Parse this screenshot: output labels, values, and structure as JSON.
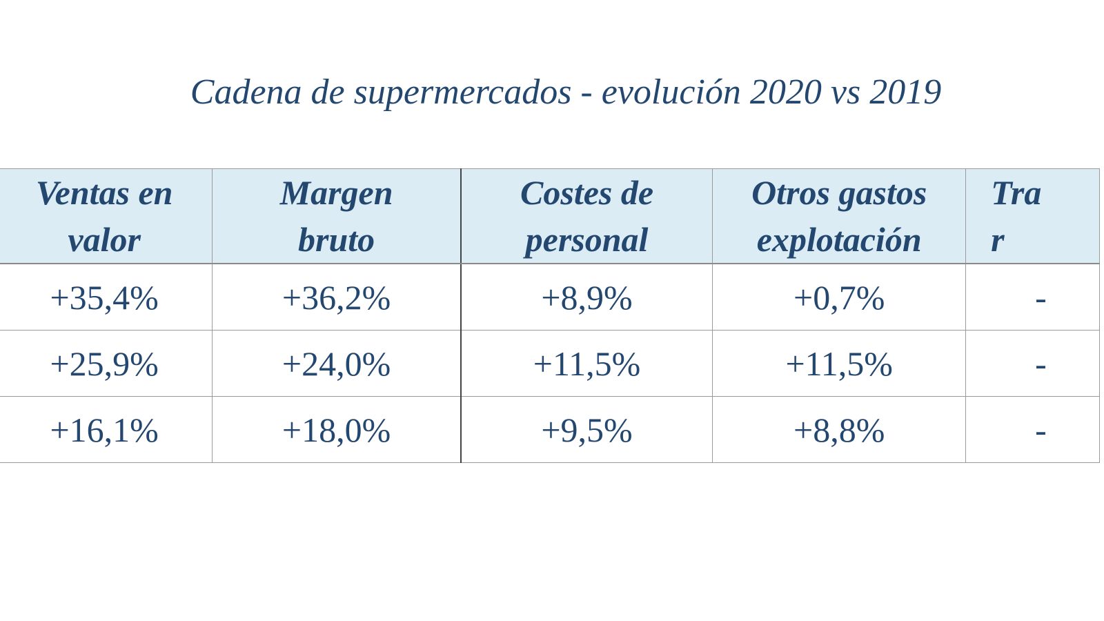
{
  "title": "Cadena de supermercados - evolución 2020 vs 2019",
  "table": {
    "headers": [
      "Ventas  en\nvalor",
      "Margen\nbruto",
      "Costes de\npersonal",
      "Otros gastos\nexplotación",
      "Tra\nr"
    ],
    "rows": [
      [
        "+35,4%",
        "+36,2%",
        "+8,9%",
        "+0,7%",
        "-"
      ],
      [
        "+25,9%",
        "+24,0%",
        "+11,5%",
        "+11,5%",
        "-"
      ],
      [
        "+16,1%",
        "+18,0%",
        "+9,5%",
        "+8,8%",
        "-"
      ]
    ]
  },
  "colors": {
    "text": "#23476f",
    "header_bg": "#dbecf5",
    "grid": "#9a9a9a"
  }
}
